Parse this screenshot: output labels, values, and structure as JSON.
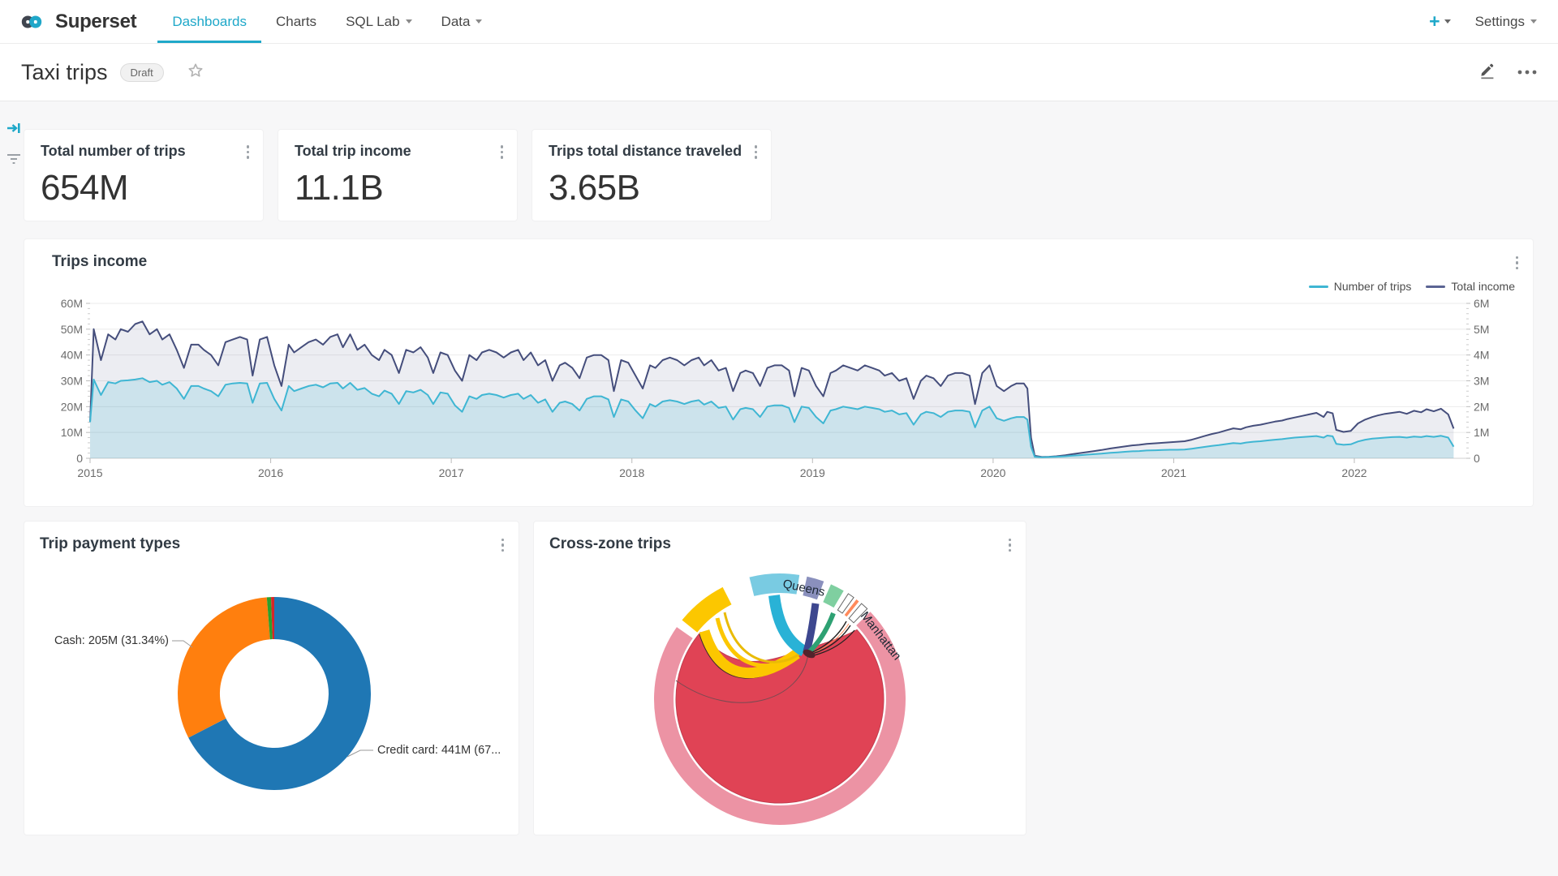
{
  "nav": {
    "brand": "Superset",
    "items": [
      {
        "label": "Dashboards",
        "active": true
      },
      {
        "label": "Charts",
        "active": false
      },
      {
        "label": "SQL Lab",
        "active": false
      },
      {
        "label": "Data",
        "active": false
      }
    ],
    "plus_label": "+",
    "settings_label": "Settings"
  },
  "header": {
    "title": "Taxi trips",
    "status_badge": "Draft"
  },
  "kpis": [
    {
      "title": "Total number of trips",
      "value": "654M"
    },
    {
      "title": "Total trip income",
      "value": "11.1B"
    },
    {
      "title": "Trips total distance traveled",
      "value": "3.65B"
    }
  ],
  "chart_data": [
    {
      "id": "trips_income",
      "type": "line",
      "title": "Trips income",
      "legend": [
        {
          "name": "Number of trips",
          "color": "#3fb6d3"
        },
        {
          "name": "Total income",
          "color": "#454e7c"
        }
      ],
      "x_range": [
        2015,
        2022.62
      ],
      "x_ticks": [
        "2015",
        "2016",
        "2017",
        "2018",
        "2019",
        "2020",
        "2021",
        "2022"
      ],
      "y_left": {
        "ticks": [
          "0",
          "10M",
          "20M",
          "30M",
          "40M",
          "50M",
          "60M"
        ],
        "max": 60
      },
      "y_right": {
        "ticks": [
          "0",
          "1M",
          "2M",
          "3M",
          "4M",
          "5M",
          "6M"
        ],
        "max": 6
      },
      "x": [
        2015.0,
        2015.02,
        2015.06,
        2015.1,
        2015.14,
        2015.17,
        2015.21,
        2015.25,
        2015.29,
        2015.33,
        2015.37,
        2015.4,
        2015.44,
        2015.48,
        2015.52,
        2015.56,
        2015.6,
        2015.63,
        2015.67,
        2015.71,
        2015.75,
        2015.79,
        2015.83,
        2015.87,
        2015.9,
        2015.94,
        2015.98,
        2016.02,
        2016.06,
        2016.1,
        2016.13,
        2016.17,
        2016.21,
        2016.25,
        2016.29,
        2016.33,
        2016.37,
        2016.4,
        2016.44,
        2016.48,
        2016.52,
        2016.56,
        2016.6,
        2016.63,
        2016.67,
        2016.71,
        2016.75,
        2016.79,
        2016.83,
        2016.87,
        2016.9,
        2016.94,
        2016.98,
        2017.02,
        2017.06,
        2017.1,
        2017.14,
        2017.17,
        2017.21,
        2017.25,
        2017.29,
        2017.33,
        2017.37,
        2017.4,
        2017.44,
        2017.48,
        2017.52,
        2017.56,
        2017.6,
        2017.63,
        2017.67,
        2017.71,
        2017.75,
        2017.79,
        2017.83,
        2017.87,
        2017.9,
        2017.94,
        2017.98,
        2018.02,
        2018.06,
        2018.1,
        2018.13,
        2018.17,
        2018.21,
        2018.25,
        2018.29,
        2018.33,
        2018.37,
        2018.4,
        2018.44,
        2018.48,
        2018.52,
        2018.56,
        2018.6,
        2018.63,
        2018.67,
        2018.71,
        2018.75,
        2018.79,
        2018.83,
        2018.87,
        2018.9,
        2018.94,
        2018.98,
        2019.02,
        2019.06,
        2019.1,
        2019.13,
        2019.17,
        2019.21,
        2019.25,
        2019.29,
        2019.33,
        2019.37,
        2019.4,
        2019.44,
        2019.48,
        2019.52,
        2019.56,
        2019.6,
        2019.63,
        2019.67,
        2019.71,
        2019.75,
        2019.79,
        2019.83,
        2019.87,
        2019.9,
        2019.94,
        2019.98,
        2020.02,
        2020.06,
        2020.1,
        2020.13,
        2020.17,
        2020.19,
        2020.21,
        2020.23,
        2020.27,
        2020.31,
        2020.35,
        2020.4,
        2020.44,
        2020.48,
        2020.52,
        2020.56,
        2020.6,
        2020.65,
        2020.69,
        2020.73,
        2020.77,
        2020.81,
        2020.85,
        2020.9,
        2020.94,
        2020.98,
        2021.02,
        2021.06,
        2021.1,
        2021.13,
        2021.17,
        2021.21,
        2021.25,
        2021.29,
        2021.33,
        2021.37,
        2021.4,
        2021.44,
        2021.48,
        2021.52,
        2021.56,
        2021.6,
        2021.63,
        2021.67,
        2021.71,
        2021.75,
        2021.79,
        2021.83,
        2021.85,
        2021.88,
        2021.9,
        2021.94,
        2021.98,
        2022.02,
        2022.06,
        2022.1,
        2022.13,
        2022.17,
        2022.21,
        2022.25,
        2022.29,
        2022.33,
        2022.37,
        2022.4,
        2022.44,
        2022.48,
        2022.52,
        2022.55
      ],
      "series": [
        {
          "name": "Total income",
          "axis": "left",
          "color": "#454e7c",
          "values": [
            14,
            50,
            38,
            48,
            46,
            50,
            49,
            52,
            53,
            48,
            50,
            46,
            48,
            42,
            35,
            44,
            44,
            42,
            40,
            36,
            45,
            46,
            47,
            46,
            32,
            46,
            47,
            36,
            28,
            44,
            41,
            43,
            45,
            46,
            44,
            47,
            48,
            43,
            48,
            42,
            44,
            40,
            38,
            42,
            40,
            33,
            42,
            41,
            43,
            39,
            33,
            41,
            40,
            34,
            30,
            40,
            38,
            41,
            42,
            41,
            39,
            41,
            42,
            38,
            41,
            36,
            38,
            30,
            36,
            37,
            35,
            31,
            39,
            40,
            40,
            38,
            26,
            38,
            37,
            32,
            27,
            36,
            35,
            38,
            39,
            38,
            36,
            38,
            39,
            36,
            38,
            34,
            35,
            26,
            33,
            34,
            33,
            28,
            35,
            36,
            36,
            34,
            24,
            35,
            34,
            28,
            24,
            33,
            34,
            36,
            35,
            34,
            36,
            35,
            34,
            32,
            33,
            30,
            31,
            23,
            30,
            32,
            31,
            28,
            32,
            33,
            33,
            32,
            21,
            33,
            36,
            28,
            26,
            28,
            29,
            29,
            27,
            8,
            1,
            0.5,
            0.6,
            0.8,
            1.2,
            1.6,
            2,
            2.4,
            2.8,
            3.2,
            3.8,
            4.2,
            4.6,
            5,
            5.2,
            5.6,
            5.8,
            6,
            6.2,
            6.4,
            6.6,
            7.2,
            7.8,
            8.6,
            9.4,
            10,
            10.8,
            11.6,
            11.2,
            12,
            12.6,
            13,
            13.6,
            14.2,
            14.6,
            15.2,
            15.8,
            16.4,
            17,
            17.6,
            16,
            18,
            17.4,
            11,
            10.2,
            10.6,
            13.5,
            15,
            16,
            16.6,
            17.2,
            17.6,
            18,
            17.2,
            18.4,
            17.8,
            19,
            18.2,
            19.2,
            17,
            11.5
          ]
        },
        {
          "name": "Number of trips",
          "axis": "right",
          "color": "#3fb6d3",
          "values": [
            1.4,
            3.05,
            2.45,
            2.95,
            2.9,
            3.0,
            3.02,
            3.05,
            3.1,
            2.95,
            3.0,
            2.85,
            2.95,
            2.7,
            2.3,
            2.8,
            2.8,
            2.7,
            2.6,
            2.4,
            2.85,
            2.9,
            2.92,
            2.9,
            2.15,
            2.9,
            2.92,
            2.3,
            1.85,
            2.8,
            2.6,
            2.7,
            2.8,
            2.85,
            2.75,
            2.9,
            2.92,
            2.7,
            2.92,
            2.65,
            2.72,
            2.5,
            2.4,
            2.62,
            2.5,
            2.1,
            2.6,
            2.55,
            2.65,
            2.45,
            2.1,
            2.55,
            2.5,
            2.05,
            1.8,
            2.4,
            2.3,
            2.45,
            2.5,
            2.45,
            2.35,
            2.45,
            2.5,
            2.3,
            2.45,
            2.15,
            2.28,
            1.8,
            2.15,
            2.2,
            2.1,
            1.85,
            2.3,
            2.4,
            2.4,
            2.28,
            1.6,
            2.28,
            2.2,
            1.85,
            1.55,
            2.1,
            2.0,
            2.2,
            2.25,
            2.2,
            2.1,
            2.2,
            2.25,
            2.08,
            2.2,
            1.95,
            2.0,
            1.5,
            1.9,
            1.95,
            1.9,
            1.6,
            2.0,
            2.05,
            2.05,
            1.95,
            1.4,
            2.0,
            1.95,
            1.6,
            1.35,
            1.85,
            1.9,
            2.0,
            1.95,
            1.9,
            2.0,
            1.95,
            1.9,
            1.8,
            1.85,
            1.7,
            1.75,
            1.3,
            1.7,
            1.8,
            1.75,
            1.6,
            1.8,
            1.85,
            1.85,
            1.8,
            1.2,
            1.85,
            2.0,
            1.55,
            1.45,
            1.55,
            1.6,
            1.6,
            1.5,
            0.45,
            0.06,
            0.04,
            0.05,
            0.06,
            0.08,
            0.1,
            0.12,
            0.14,
            0.16,
            0.18,
            0.21,
            0.23,
            0.25,
            0.27,
            0.28,
            0.3,
            0.31,
            0.32,
            0.33,
            0.33,
            0.34,
            0.37,
            0.4,
            0.44,
            0.48,
            0.51,
            0.55,
            0.59,
            0.57,
            0.61,
            0.64,
            0.66,
            0.69,
            0.72,
            0.74,
            0.77,
            0.8,
            0.82,
            0.84,
            0.86,
            0.8,
            0.88,
            0.85,
            0.56,
            0.52,
            0.54,
            0.65,
            0.72,
            0.76,
            0.78,
            0.8,
            0.82,
            0.83,
            0.8,
            0.84,
            0.82,
            0.86,
            0.83,
            0.87,
            0.8,
            0.45
          ]
        }
      ]
    },
    {
      "id": "trip_payment_types",
      "type": "pie",
      "title": "Trip payment types",
      "slices": [
        {
          "label": "Credit card",
          "value": "441M",
          "pct": 67.43,
          "color": "#1f77b4"
        },
        {
          "label": "Cash",
          "value": "205M",
          "pct": 31.34,
          "color": "#ff7f0e"
        },
        {
          "label": "",
          "value": "",
          "pct": 0.7,
          "color": "#2ca02c"
        },
        {
          "label": "",
          "value": "",
          "pct": 0.53,
          "color": "#d62728"
        }
      ],
      "callouts": {
        "cash": "Cash: 205M (31.34%)",
        "credit": "Credit card: 441M (67..."
      }
    },
    {
      "id": "cross_zone_trips",
      "type": "chord",
      "title": "Cross-zone trips",
      "labels": {
        "manhattan": "Manhattan",
        "queens": "Queens"
      },
      "segments": [
        {
          "name": "Manhattan",
          "start": 46,
          "end": 305,
          "color": "#ec93a4"
        },
        {
          "name": "",
          "start": -51,
          "end": -27,
          "color": "#fcc700"
        },
        {
          "name": "Queens",
          "start": -14,
          "end": 9,
          "color": "#79cbe2"
        },
        {
          "name": "",
          "start": 12.5,
          "end": 20.5,
          "color": "#8a90bd"
        },
        {
          "name": "",
          "start": 24,
          "end": 30.5,
          "color": "#7fcfa0"
        },
        {
          "name": "",
          "start": 33,
          "end": 36,
          "color": "#ffffff",
          "outline": "#666666"
        },
        {
          "name": "",
          "start": 37.5,
          "end": 39,
          "color": "#ff8a5b"
        },
        {
          "name": "",
          "start": 40.5,
          "end": 44,
          "color": "#ffffff",
          "outline": "#666666"
        }
      ],
      "inner_color": "#e04355"
    }
  ]
}
